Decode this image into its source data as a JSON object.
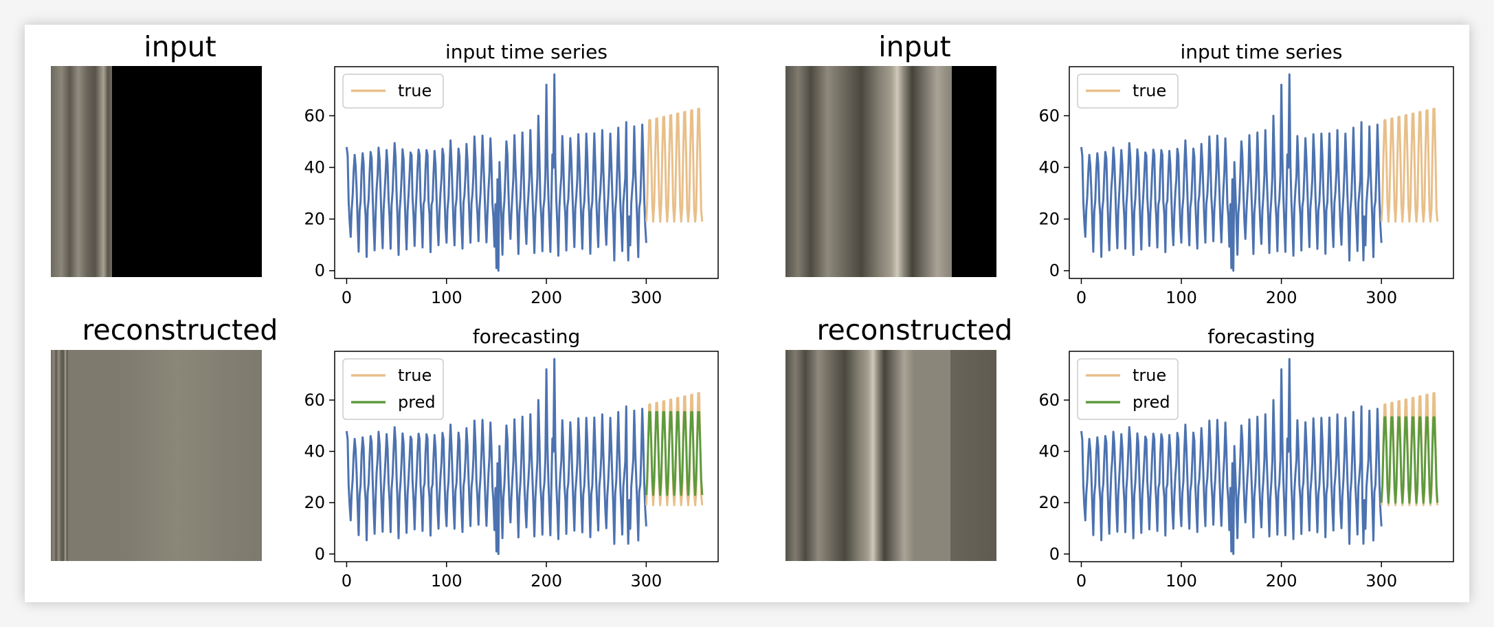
{
  "figure": {
    "left": {
      "input_title": "input",
      "reconstructed_title": "reconstructed",
      "input_visible_fraction": 0.29,
      "reconstructed_texture_fraction": 0.28
    },
    "right": {
      "input_title": "input",
      "reconstructed_title": "reconstructed",
      "input_visible_fraction": 0.79,
      "reconstructed_texture_fraction": 0.78
    }
  },
  "colors": {
    "input_series": "#4c72b0",
    "true": "#e8bf89",
    "pred": "#5e9a3e",
    "image_base": "#7b776b",
    "image_light": "#b0aa9c",
    "image_dark": "#3f3c34",
    "mask": "#000000"
  },
  "chart_data": [
    {
      "type": "line",
      "title": "input time series",
      "xlim": [
        -12,
        372
      ],
      "ylim": [
        -3,
        79
      ],
      "xticks": [
        0,
        100,
        200,
        300
      ],
      "yticks": [
        0,
        20,
        40,
        60
      ],
      "legend_position": "top-left",
      "series": [
        {
          "name": "",
          "role": "input",
          "x_range": [
            0,
            300
          ],
          "min": 0,
          "max": 76
        },
        {
          "name": "true",
          "role": "true",
          "x_range": [
            300,
            356
          ],
          "low": 19,
          "high": 66
        }
      ]
    },
    {
      "type": "line",
      "title": "forecasting",
      "xlim": [
        -12,
        372
      ],
      "ylim": [
        -3,
        79
      ],
      "xticks": [
        0,
        100,
        200,
        300
      ],
      "yticks": [
        0,
        20,
        40,
        60
      ],
      "legend_position": "top-left",
      "series": [
        {
          "name": "",
          "role": "input",
          "x_range": [
            0,
            300
          ],
          "min": 0,
          "max": 76
        },
        {
          "name": "true",
          "role": "true",
          "x_range": [
            300,
            356
          ],
          "low": 19,
          "high": 66
        },
        {
          "name": "pred",
          "role": "pred",
          "x_range": [
            300,
            356
          ],
          "low": 23,
          "high": 57
        }
      ]
    },
    {
      "type": "line",
      "title": "input time series",
      "xlim": [
        -12,
        372
      ],
      "ylim": [
        -3,
        79
      ],
      "xticks": [
        0,
        100,
        200,
        300
      ],
      "yticks": [
        0,
        20,
        40,
        60
      ],
      "legend_position": "top-left",
      "series": [
        {
          "name": "",
          "role": "input",
          "x_range": [
            0,
            300
          ],
          "min": 0,
          "max": 76
        },
        {
          "name": "true",
          "role": "true",
          "x_range": [
            300,
            356
          ],
          "low": 19,
          "high": 66
        }
      ]
    },
    {
      "type": "line",
      "title": "forecasting",
      "xlim": [
        -12,
        372
      ],
      "ylim": [
        -3,
        79
      ],
      "xticks": [
        0,
        100,
        200,
        300
      ],
      "yticks": [
        0,
        20,
        40,
        60
      ],
      "legend_position": "top-left",
      "series": [
        {
          "name": "",
          "role": "input",
          "x_range": [
            0,
            300
          ],
          "min": 0,
          "max": 76
        },
        {
          "name": "true",
          "role": "true",
          "x_range": [
            300,
            356
          ],
          "low": 19,
          "high": 66
        },
        {
          "name": "pred",
          "role": "pred",
          "x_range": [
            300,
            356
          ],
          "low": 20,
          "high": 55
        }
      ]
    }
  ]
}
